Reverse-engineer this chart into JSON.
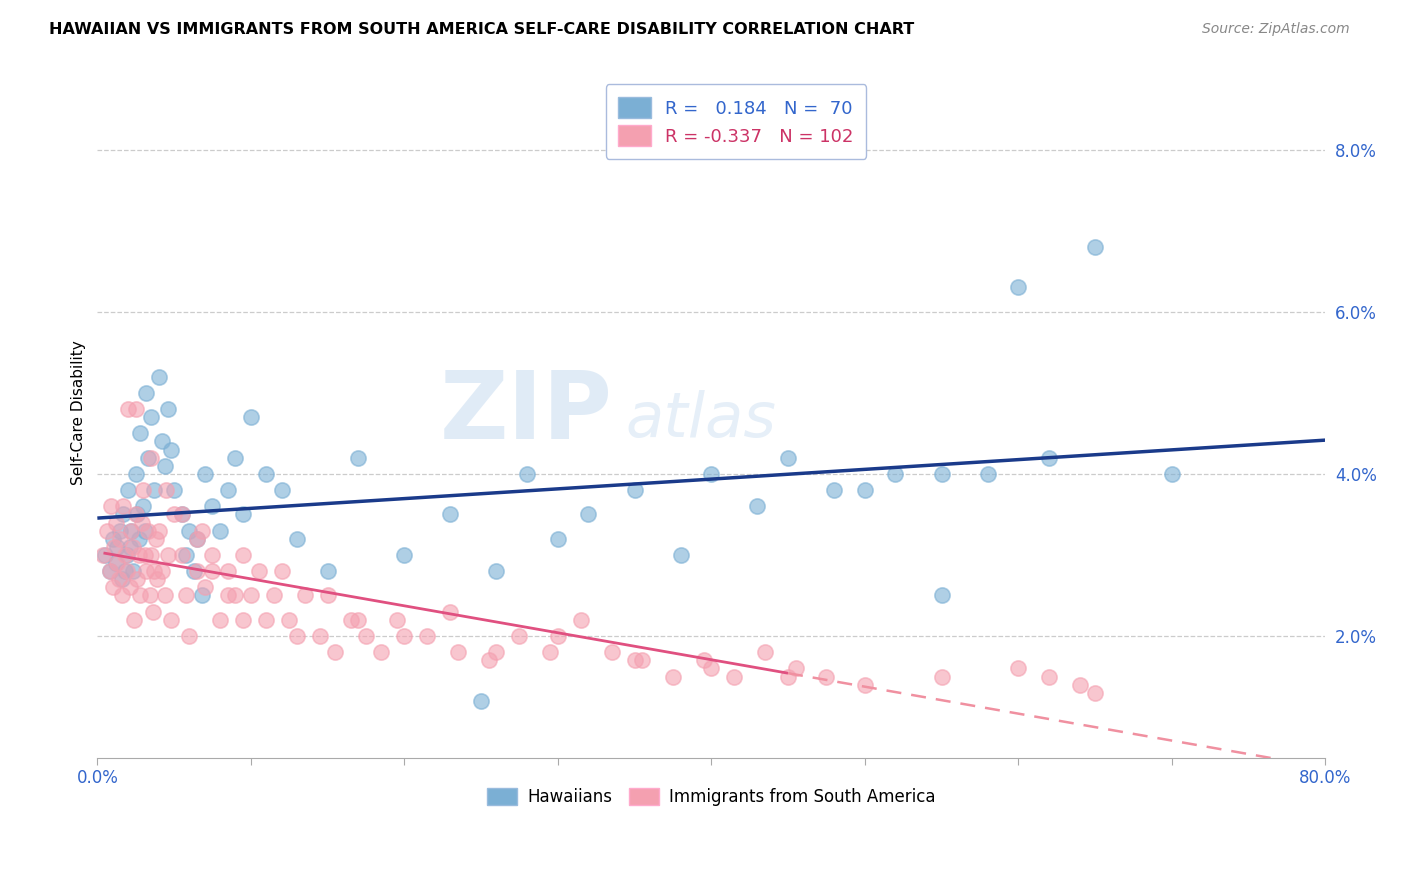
{
  "title": "HAWAIIAN VS IMMIGRANTS FROM SOUTH AMERICA SELF-CARE DISABILITY CORRELATION CHART",
  "source": "Source: ZipAtlas.com",
  "ylabel": "Self-Care Disability",
  "ytick_vals": [
    0.08,
    0.06,
    0.04,
    0.02
  ],
  "hawaiian_color": "#7BAFD4",
  "sa_color": "#F4A0B0",
  "trend_hawaiian_color": "#1A3A8A",
  "trend_sa_color_solid": "#E05080",
  "trend_sa_color_dash": "#F090A0",
  "watermark_zip": "ZIP",
  "watermark_atlas": "atlas",
  "xlim": [
    0.0,
    0.8
  ],
  "ylim": [
    0.005,
    0.09
  ],
  "xtick_positions": [
    0.0,
    0.1,
    0.2,
    0.3,
    0.4,
    0.5,
    0.6,
    0.7,
    0.8
  ],
  "hawaiian_x": [
    0.005,
    0.008,
    0.01,
    0.012,
    0.013,
    0.015,
    0.016,
    0.017,
    0.018,
    0.019,
    0.02,
    0.021,
    0.022,
    0.023,
    0.025,
    0.026,
    0.027,
    0.028,
    0.03,
    0.031,
    0.032,
    0.033,
    0.035,
    0.037,
    0.04,
    0.042,
    0.044,
    0.046,
    0.048,
    0.05,
    0.055,
    0.058,
    0.06,
    0.063,
    0.065,
    0.068,
    0.07,
    0.075,
    0.08,
    0.085,
    0.09,
    0.095,
    0.1,
    0.11,
    0.12,
    0.13,
    0.15,
    0.17,
    0.2,
    0.23,
    0.26,
    0.3,
    0.35,
    0.4,
    0.45,
    0.5,
    0.55,
    0.6,
    0.65,
    0.7,
    0.55,
    0.62,
    0.58,
    0.48,
    0.52,
    0.43,
    0.38,
    0.32,
    0.28,
    0.25
  ],
  "hawaiian_y": [
    0.03,
    0.028,
    0.032,
    0.029,
    0.031,
    0.033,
    0.027,
    0.035,
    0.028,
    0.03,
    0.038,
    0.031,
    0.033,
    0.028,
    0.04,
    0.035,
    0.032,
    0.045,
    0.036,
    0.033,
    0.05,
    0.042,
    0.047,
    0.038,
    0.052,
    0.044,
    0.041,
    0.048,
    0.043,
    0.038,
    0.035,
    0.03,
    0.033,
    0.028,
    0.032,
    0.025,
    0.04,
    0.036,
    0.033,
    0.038,
    0.042,
    0.035,
    0.047,
    0.04,
    0.038,
    0.032,
    0.028,
    0.042,
    0.03,
    0.035,
    0.028,
    0.032,
    0.038,
    0.04,
    0.042,
    0.038,
    0.025,
    0.063,
    0.068,
    0.04,
    0.04,
    0.042,
    0.04,
    0.038,
    0.04,
    0.036,
    0.03,
    0.035,
    0.04,
    0.012
  ],
  "sa_x": [
    0.004,
    0.006,
    0.008,
    0.009,
    0.01,
    0.011,
    0.012,
    0.013,
    0.014,
    0.015,
    0.016,
    0.017,
    0.018,
    0.019,
    0.02,
    0.021,
    0.022,
    0.023,
    0.024,
    0.025,
    0.026,
    0.027,
    0.028,
    0.029,
    0.03,
    0.031,
    0.032,
    0.033,
    0.034,
    0.035,
    0.036,
    0.037,
    0.038,
    0.039,
    0.04,
    0.042,
    0.044,
    0.046,
    0.048,
    0.05,
    0.055,
    0.058,
    0.06,
    0.065,
    0.068,
    0.07,
    0.075,
    0.08,
    0.085,
    0.09,
    0.095,
    0.1,
    0.11,
    0.12,
    0.13,
    0.15,
    0.17,
    0.2,
    0.23,
    0.26,
    0.3,
    0.35,
    0.4,
    0.45,
    0.5,
    0.55,
    0.6,
    0.62,
    0.64,
    0.65,
    0.025,
    0.035,
    0.045,
    0.055,
    0.065,
    0.075,
    0.085,
    0.095,
    0.105,
    0.115,
    0.125,
    0.135,
    0.145,
    0.155,
    0.165,
    0.175,
    0.185,
    0.195,
    0.215,
    0.235,
    0.255,
    0.275,
    0.295,
    0.315,
    0.335,
    0.355,
    0.375,
    0.395,
    0.415,
    0.435,
    0.455,
    0.475
  ],
  "sa_y": [
    0.03,
    0.033,
    0.028,
    0.036,
    0.026,
    0.031,
    0.034,
    0.029,
    0.027,
    0.032,
    0.025,
    0.036,
    0.03,
    0.028,
    0.048,
    0.026,
    0.033,
    0.031,
    0.022,
    0.035,
    0.027,
    0.03,
    0.025,
    0.034,
    0.038,
    0.03,
    0.028,
    0.033,
    0.025,
    0.03,
    0.023,
    0.028,
    0.032,
    0.027,
    0.033,
    0.028,
    0.025,
    0.03,
    0.022,
    0.035,
    0.03,
    0.025,
    0.02,
    0.028,
    0.033,
    0.026,
    0.03,
    0.022,
    0.028,
    0.025,
    0.03,
    0.025,
    0.022,
    0.028,
    0.02,
    0.025,
    0.022,
    0.02,
    0.023,
    0.018,
    0.02,
    0.017,
    0.016,
    0.015,
    0.014,
    0.015,
    0.016,
    0.015,
    0.014,
    0.013,
    0.048,
    0.042,
    0.038,
    0.035,
    0.032,
    0.028,
    0.025,
    0.022,
    0.028,
    0.025,
    0.022,
    0.025,
    0.02,
    0.018,
    0.022,
    0.02,
    0.018,
    0.022,
    0.02,
    0.018,
    0.017,
    0.02,
    0.018,
    0.022,
    0.018,
    0.017,
    0.015,
    0.017,
    0.015,
    0.018,
    0.016,
    0.015
  ]
}
